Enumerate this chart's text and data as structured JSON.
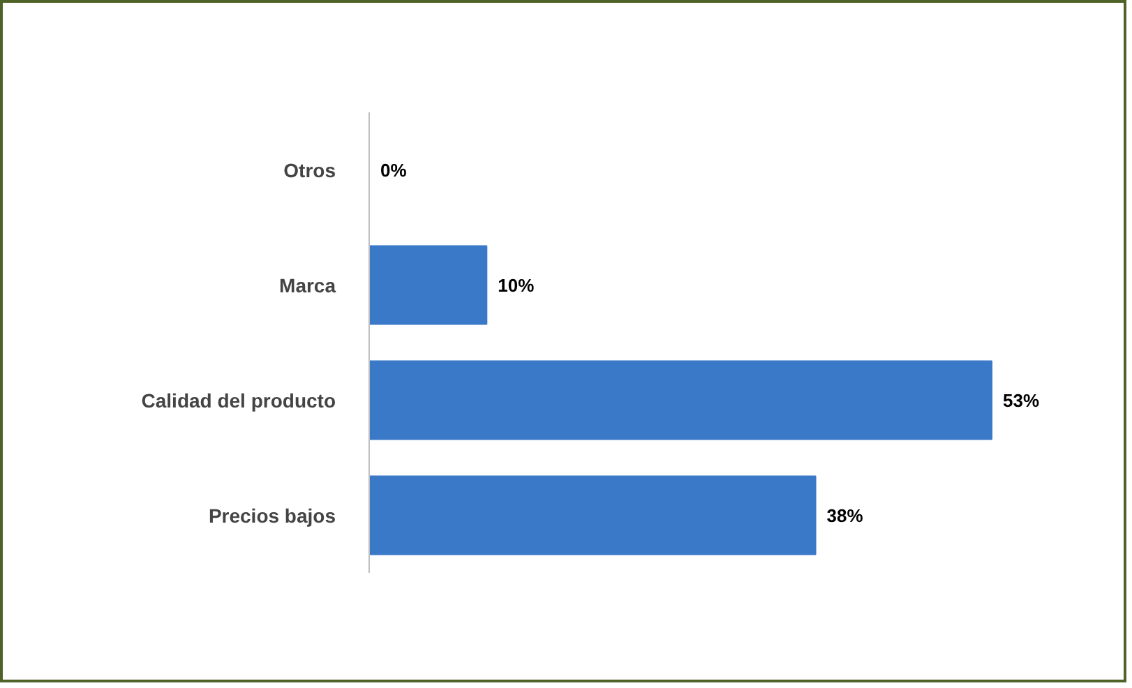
{
  "chart_data": {
    "type": "bar",
    "orientation": "horizontal",
    "categories": [
      "Otros",
      "Marca",
      "Calidad del producto",
      "Precios bajos"
    ],
    "values": [
      0,
      10,
      53,
      38
    ],
    "value_labels": [
      "0%",
      "10%",
      "53%",
      "38%"
    ],
    "color": "#3a78c8",
    "grid": false
  }
}
